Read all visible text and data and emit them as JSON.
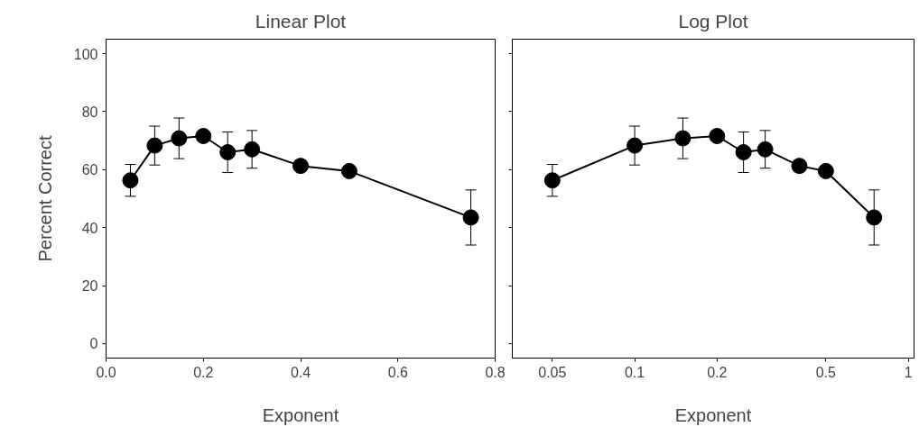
{
  "chart_data": [
    {
      "type": "line",
      "title": "Linear Plot",
      "xlabel": "Exponent",
      "ylabel": "Percent Correct",
      "marker": "circle",
      "line_style": "solid",
      "grid": false,
      "xlim": [
        0,
        0.8
      ],
      "ylim": [
        -5,
        105
      ],
      "xticks": [
        {
          "value": 0,
          "label": "0.0"
        },
        {
          "value": 0.2,
          "label": "0.2"
        },
        {
          "value": 0.4,
          "label": "0.4"
        },
        {
          "value": 0.6,
          "label": "0.6"
        },
        {
          "value": 0.8,
          "label": "0.8"
        }
      ],
      "yticks": [
        0,
        20,
        40,
        60,
        80,
        100
      ],
      "series": [
        {
          "color": "#000000",
          "x": [
            0.05,
            0.1,
            0.15,
            0.2,
            0.25,
            0.3,
            0.4,
            0.5,
            0.75
          ],
          "values": [
            56.3,
            68.3,
            70.8,
            71.6,
            66,
            67,
            61.3,
            59.5,
            43.5
          ],
          "errors": [
            5.5,
            6.7,
            7,
            1,
            7,
            6.5,
            2,
            1,
            9.5
          ]
        }
      ]
    },
    {
      "type": "line",
      "title": "Log Plot",
      "xlabel": "Exponent",
      "marker": "circle",
      "line_style": "solid",
      "grid": false,
      "log": "x",
      "tick_labels": "x",
      "xlim": [
        0.0357,
        1.05
      ],
      "ylim": [
        -5,
        105
      ],
      "xticks": [
        0.05,
        0.1,
        0.2,
        0.5,
        1
      ],
      "yticks": [
        0,
        20,
        40,
        60,
        80,
        100
      ],
      "series": [
        {
          "color": "#000000",
          "x": [
            0.05,
            0.1,
            0.15,
            0.2,
            0.25,
            0.3,
            0.4,
            0.5,
            0.75
          ],
          "values": [
            56.3,
            68.3,
            70.8,
            71.6,
            66,
            67,
            61.3,
            59.5,
            43.5
          ],
          "errors": [
            5.5,
            6.7,
            7,
            1,
            7,
            6.5,
            2,
            1,
            9.5
          ]
        }
      ]
    }
  ]
}
